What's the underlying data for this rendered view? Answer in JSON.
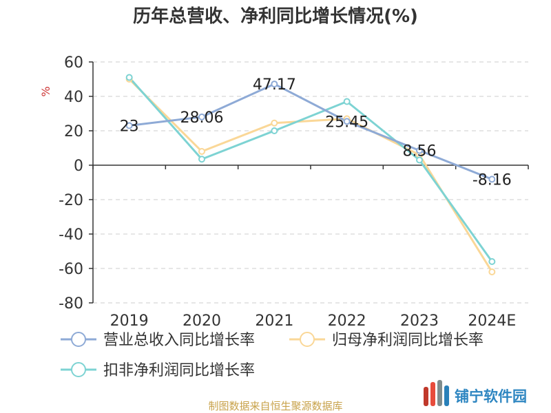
{
  "chart_data": {
    "type": "line",
    "title": "历年总营收、净利同比增长情况(%)",
    "ylabel": "%",
    "categories": [
      "2019",
      "2020",
      "2021",
      "2022",
      "2023",
      "2024E"
    ],
    "ylim": [
      -80,
      60
    ],
    "yticks": [
      "60",
      "40",
      "20",
      "0",
      "-20",
      "-40",
      "-60",
      "-80"
    ],
    "grid": true,
    "legend_position": "bottom",
    "series": [
      {
        "name": "营业总收入同比增长率",
        "color": "#8eaad6",
        "values": [
          23,
          28.06,
          47.17,
          25.45,
          8.56,
          -8.16
        ],
        "labels": [
          "23",
          "28.06",
          "47.17",
          "25.45",
          "8.56",
          "-8.16"
        ]
      },
      {
        "name": "归母净利润同比增长率",
        "color": "#fad797",
        "values": [
          50,
          8,
          24.5,
          27,
          6,
          -62
        ]
      },
      {
        "name": "扣非净利润同比增长率",
        "color": "#7dd3d3",
        "values": [
          51,
          3.5,
          20,
          37,
          3,
          -56
        ]
      }
    ]
  },
  "source": "制图数据来自恒生聚源数据库",
  "logo": {
    "text": "铺宁软件园",
    "colors": [
      "#c0392b",
      "#e74c3c",
      "#7f8c8d",
      "#2980b9"
    ]
  },
  "colors": {
    "source_text": "#c8a24a",
    "unit_text": "#cc3333",
    "grid": "#cccccc",
    "axis": "#333333",
    "logo_text": "#2e86c1"
  }
}
